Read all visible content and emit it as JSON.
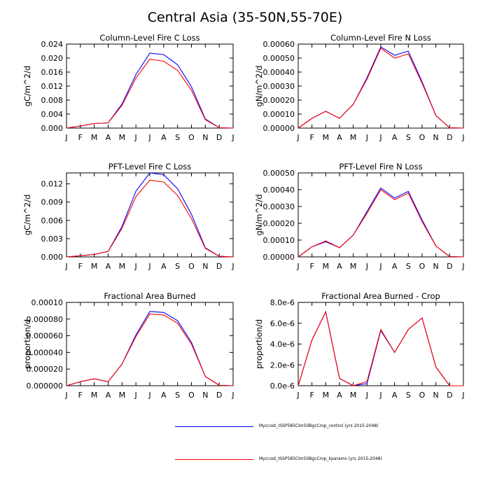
{
  "figure": {
    "title": "Central Asia (35-50N,55-70E)"
  },
  "legend": {
    "items": [
      {
        "label": "Myccost_ISSP585Clm50BgcCrop_control (yrs 2015-2048)",
        "color": "#0000ff"
      },
      {
        "label": "Myccost_ISSP585Clm50BgcCrop_kparams (yrs 2015-2048)",
        "color": "#ff0000"
      }
    ]
  },
  "chart_data": [
    {
      "type": "line",
      "title": "Column-Level Fire C Loss",
      "ylabel": "gC/m^2/d",
      "x": [
        "J",
        "F",
        "M",
        "A",
        "M",
        "J",
        "J",
        "A",
        "S",
        "O",
        "N",
        "D",
        "J"
      ],
      "ylim": [
        0,
        0.024
      ],
      "yticks": [
        "0.000",
        "0.004",
        "0.008",
        "0.012",
        "0.016",
        "0.020",
        "0.024"
      ],
      "series": [
        {
          "color": "#0000ff",
          "values": [
            0.0,
            0.0006,
            0.0013,
            0.0015,
            0.0069,
            0.0153,
            0.0214,
            0.021,
            0.0181,
            0.0118,
            0.0026,
            0.0001,
            0.0
          ]
        },
        {
          "color": "#ff0000",
          "values": [
            0.0,
            0.0006,
            0.0013,
            0.0015,
            0.0065,
            0.0143,
            0.0197,
            0.0191,
            0.0165,
            0.0108,
            0.0024,
            0.0001,
            0.0
          ]
        }
      ]
    },
    {
      "type": "line",
      "title": "Column-Level Fire N Loss",
      "ylabel": "gN/m^2/d",
      "x": [
        "J",
        "F",
        "M",
        "A",
        "M",
        "J",
        "J",
        "A",
        "S",
        "O",
        "N",
        "D",
        "J"
      ],
      "ylim": [
        0,
        0.0006
      ],
      "yticks": [
        "0.00000",
        "0.00010",
        "0.00020",
        "0.00030",
        "0.00040",
        "0.00050",
        "0.00060"
      ],
      "series": [
        {
          "color": "#0000ff",
          "values": [
            0.0,
            7e-05,
            0.00012,
            7e-05,
            0.00017,
            0.00036,
            0.00058,
            0.00052,
            0.00055,
            0.00033,
            9e-05,
            2e-06,
            0.0
          ]
        },
        {
          "color": "#ff0000",
          "values": [
            0.0,
            7e-05,
            0.00012,
            7e-05,
            0.00017,
            0.00035,
            0.00057,
            0.0005,
            0.00053,
            0.00032,
            9e-05,
            2e-06,
            0.0
          ]
        }
      ]
    },
    {
      "type": "line",
      "title": "PFT-Level Fire C Loss",
      "ylabel": "gC/m^2/d",
      "x": [
        "J",
        "F",
        "M",
        "A",
        "M",
        "J",
        "J",
        "A",
        "S",
        "O",
        "N",
        "D",
        "J"
      ],
      "ylim": [
        0,
        0.0138
      ],
      "yticks": [
        "0.000",
        "0.003",
        "0.006",
        "0.009",
        "0.012"
      ],
      "ytickvalues": [
        0,
        0.003,
        0.006,
        0.009,
        0.012
      ],
      "series": [
        {
          "color": "#0000ff",
          "values": [
            0.0,
            0.0002,
            0.0004,
            0.0009,
            0.005,
            0.0108,
            0.0138,
            0.0135,
            0.0112,
            0.007,
            0.0015,
            0.0001,
            0.0
          ]
        },
        {
          "color": "#ff0000",
          "values": [
            0.0,
            0.0002,
            0.0004,
            0.0009,
            0.0047,
            0.0099,
            0.0126,
            0.0123,
            0.0101,
            0.0063,
            0.0014,
            0.0001,
            0.0
          ]
        }
      ]
    },
    {
      "type": "line",
      "title": "PFT-Level Fire N Loss",
      "ylabel": "gN/m^2/d",
      "x": [
        "J",
        "F",
        "M",
        "A",
        "M",
        "J",
        "J",
        "A",
        "S",
        "O",
        "N",
        "D",
        "J"
      ],
      "ylim": [
        0,
        0.0005
      ],
      "yticks": [
        "0.00000",
        "0.00010",
        "0.00020",
        "0.00030",
        "0.00040",
        "0.00050"
      ],
      "series": [
        {
          "color": "#0000ff",
          "values": [
            0.0,
            6e-05,
            9e-05,
            5.5e-05,
            0.00013,
            0.00027,
            0.00041,
            0.00035,
            0.00039,
            0.00022,
            6.5e-05,
            2e-06,
            0.0
          ]
        },
        {
          "color": "#ff0000",
          "values": [
            0.0,
            6e-05,
            9.5e-05,
            5.5e-05,
            0.00013,
            0.00026,
            0.0004,
            0.00034,
            0.00038,
            0.00021,
            6.5e-05,
            2e-06,
            0.0
          ]
        }
      ]
    },
    {
      "type": "line",
      "title": "Fractional Area Burned",
      "ylabel": "proportion/d",
      "x": [
        "J",
        "F",
        "M",
        "A",
        "M",
        "J",
        "J",
        "A",
        "S",
        "O",
        "N",
        "D",
        "J"
      ],
      "ylim": [
        0,
        0.0001
      ],
      "yticks": [
        "0.000000",
        "0.000020",
        "0.000040",
        "0.000060",
        "0.000080",
        "0.00010"
      ],
      "series": [
        {
          "color": "#0000ff",
          "values": [
            0.0,
            4.8e-06,
            8.3e-06,
            4.8e-06,
            2.6e-05,
            6.1e-05,
            8.9e-05,
            8.8e-05,
            7.8e-05,
            5.2e-05,
            1.1e-05,
            5e-07,
            0.0
          ]
        },
        {
          "color": "#ff0000",
          "values": [
            0.0,
            4.8e-06,
            8.3e-06,
            4.8e-06,
            2.6e-05,
            5.9e-05,
            8.6e-05,
            8.5e-05,
            7.5e-05,
            5e-05,
            1.1e-05,
            5e-07,
            0.0
          ]
        }
      ]
    },
    {
      "type": "line",
      "title": "Fractional Area Burned - Crop",
      "ylabel": "proportion/d",
      "x": [
        "J",
        "F",
        "M",
        "A",
        "M",
        "J",
        "J",
        "A",
        "S",
        "O",
        "N",
        "D",
        "J"
      ],
      "ylim": [
        0,
        8e-06
      ],
      "yticks": [
        "0.0e-6",
        "2.0e-6",
        "4.0e-6",
        "6.0e-6",
        "8.0e-6"
      ],
      "series": [
        {
          "color": "#0000ff",
          "values": [
            0.0,
            4.4e-06,
            7.1e-06,
            7e-07,
            0.0,
            2e-07,
            5.3e-06,
            3.2e-06,
            5.4e-06,
            6.5e-06,
            1.8e-06,
            0.0,
            0.0
          ]
        },
        {
          "color": "#ff0000",
          "values": [
            0.0,
            4.4e-06,
            7.1e-06,
            7e-07,
            0.0,
            4e-07,
            5.4e-06,
            3.2e-06,
            5.4e-06,
            6.5e-06,
            1.8e-06,
            0.0,
            0.0
          ]
        }
      ]
    }
  ]
}
